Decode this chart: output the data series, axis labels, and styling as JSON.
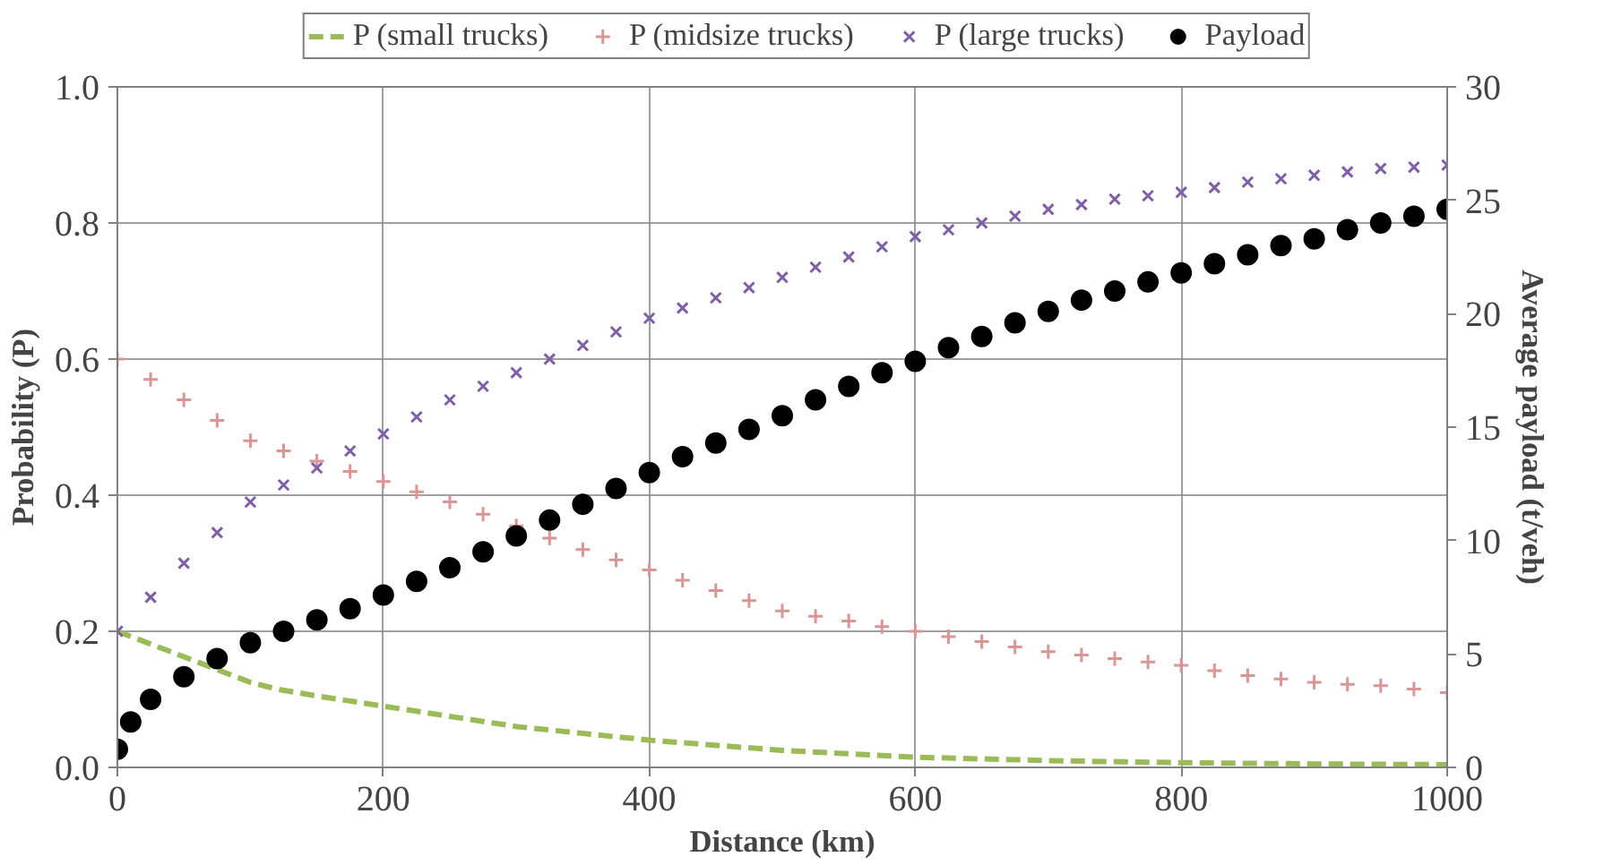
{
  "chart_data": {
    "type": "scatter",
    "xlabel": "Distance (km)",
    "ylabel": "Probability (P)",
    "y2label": "Average payload (t/veh)",
    "xlim": [
      0,
      1000
    ],
    "xticks": [
      0,
      200,
      400,
      600,
      800,
      1000
    ],
    "ylim": [
      0,
      1
    ],
    "yticks": [
      {
        "value": 0,
        "label": "0.0"
      },
      0.2,
      0.4,
      0.6,
      0.8,
      {
        "value": 1,
        "label": "1.0"
      }
    ],
    "y2lim": [
      0,
      30
    ],
    "y2ticks": [
      0,
      5,
      10,
      15,
      20,
      25,
      30
    ],
    "grid": true,
    "legend": "top",
    "series": [
      {
        "name": "P (small trucks)",
        "color": "#9bbb59",
        "type": "line",
        "line_style": "dashed",
        "marker": "none",
        "x": [
          0,
          20,
          40,
          60,
          80,
          100,
          120,
          150,
          200,
          250,
          300,
          350,
          400,
          500,
          600,
          700,
          800,
          900,
          1000
        ],
        "values": [
          0.2,
          0.185,
          0.17,
          0.155,
          0.14,
          0.125,
          0.115,
          0.105,
          0.09,
          0.075,
          0.06,
          0.05,
          0.04,
          0.025,
          0.015,
          0.01,
          0.007,
          0.005,
          0.004
        ]
      },
      {
        "name": "P (midsize trucks)",
        "color": "#d99694",
        "marker": "cross",
        "x": [
          0,
          25,
          50,
          75,
          100,
          125,
          150,
          175,
          200,
          225,
          250,
          275,
          300,
          325,
          350,
          375,
          400,
          425,
          450,
          475,
          500,
          525,
          550,
          575,
          600,
          625,
          650,
          675,
          700,
          725,
          750,
          775,
          800,
          825,
          850,
          875,
          900,
          925,
          950,
          975,
          1000
        ],
        "values": [
          0.6,
          0.57,
          0.54,
          0.51,
          0.48,
          0.465,
          0.45,
          0.435,
          0.42,
          0.405,
          0.39,
          0.372,
          0.355,
          0.337,
          0.32,
          0.305,
          0.29,
          0.275,
          0.26,
          0.245,
          0.23,
          0.222,
          0.215,
          0.207,
          0.2,
          0.192,
          0.185,
          0.177,
          0.17,
          0.165,
          0.16,
          0.155,
          0.15,
          0.142,
          0.135,
          0.13,
          0.125,
          0.122,
          0.12,
          0.115,
          0.11
        ]
      },
      {
        "name": "P (large trucks)",
        "color": "#7f5fa8",
        "marker": "x",
        "x": [
          0,
          25,
          50,
          75,
          100,
          125,
          150,
          175,
          200,
          225,
          250,
          275,
          300,
          325,
          350,
          375,
          400,
          425,
          450,
          475,
          500,
          525,
          550,
          575,
          600,
          625,
          650,
          675,
          700,
          725,
          750,
          775,
          800,
          825,
          850,
          875,
          900,
          925,
          950,
          975,
          1000
        ],
        "values": [
          0.2,
          0.25,
          0.3,
          0.345,
          0.39,
          0.415,
          0.44,
          0.465,
          0.49,
          0.515,
          0.54,
          0.56,
          0.58,
          0.6,
          0.62,
          0.64,
          0.66,
          0.675,
          0.69,
          0.705,
          0.72,
          0.735,
          0.75,
          0.765,
          0.78,
          0.79,
          0.8,
          0.81,
          0.82,
          0.827,
          0.835,
          0.84,
          0.845,
          0.852,
          0.86,
          0.865,
          0.87,
          0.875,
          0.88,
          0.882,
          0.885
        ]
      },
      {
        "name": "Payload",
        "color": "#000000",
        "marker": "circle",
        "axis": "y2",
        "x": [
          0,
          10,
          25,
          50,
          75,
          100,
          125,
          150,
          175,
          200,
          225,
          250,
          275,
          300,
          325,
          350,
          375,
          400,
          425,
          450,
          475,
          500,
          525,
          550,
          575,
          600,
          625,
          650,
          675,
          700,
          725,
          750,
          775,
          800,
          825,
          850,
          875,
          900,
          925,
          950,
          975,
          1000
        ],
        "values": [
          0.8,
          2.0,
          3.0,
          4.0,
          4.8,
          5.5,
          6.0,
          6.5,
          7.0,
          7.6,
          8.2,
          8.8,
          9.5,
          10.2,
          10.9,
          11.6,
          12.3,
          13.0,
          13.7,
          14.3,
          14.9,
          15.5,
          16.2,
          16.8,
          17.4,
          17.9,
          18.5,
          19.0,
          19.6,
          20.1,
          20.6,
          21.0,
          21.4,
          21.8,
          22.2,
          22.6,
          23.0,
          23.3,
          23.7,
          24.0,
          24.3,
          24.6
        ]
      }
    ]
  }
}
